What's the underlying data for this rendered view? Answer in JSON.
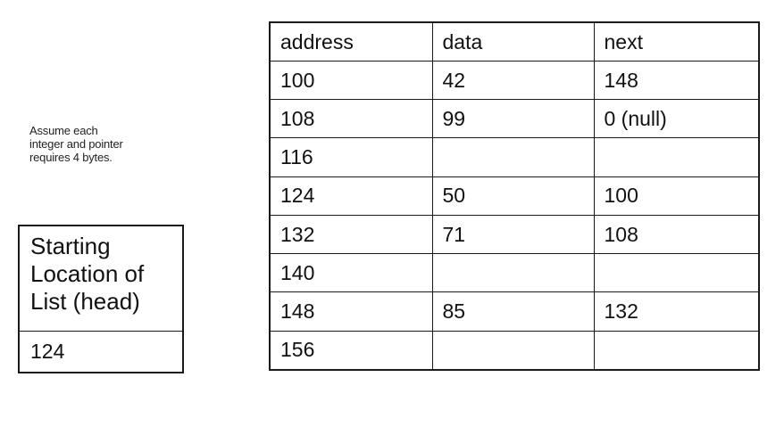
{
  "note": {
    "lines": [
      "Assume each",
      "integer and pointer",
      "requires 4 bytes."
    ]
  },
  "head_box": {
    "title_lines": [
      "Starting",
      "Location of",
      "List (head)"
    ],
    "value": "124"
  },
  "memory_table": {
    "columns": [
      "address",
      "data",
      "next"
    ],
    "rows": [
      [
        "100",
        "42",
        "148"
      ],
      [
        "108",
        "99",
        "0 (null)"
      ],
      [
        "116",
        "",
        ""
      ],
      [
        "124",
        "50",
        "100"
      ],
      [
        "132",
        "71",
        "108"
      ],
      [
        "140",
        "",
        ""
      ],
      [
        "148",
        "85",
        "132"
      ],
      [
        "156",
        "",
        ""
      ]
    ]
  }
}
